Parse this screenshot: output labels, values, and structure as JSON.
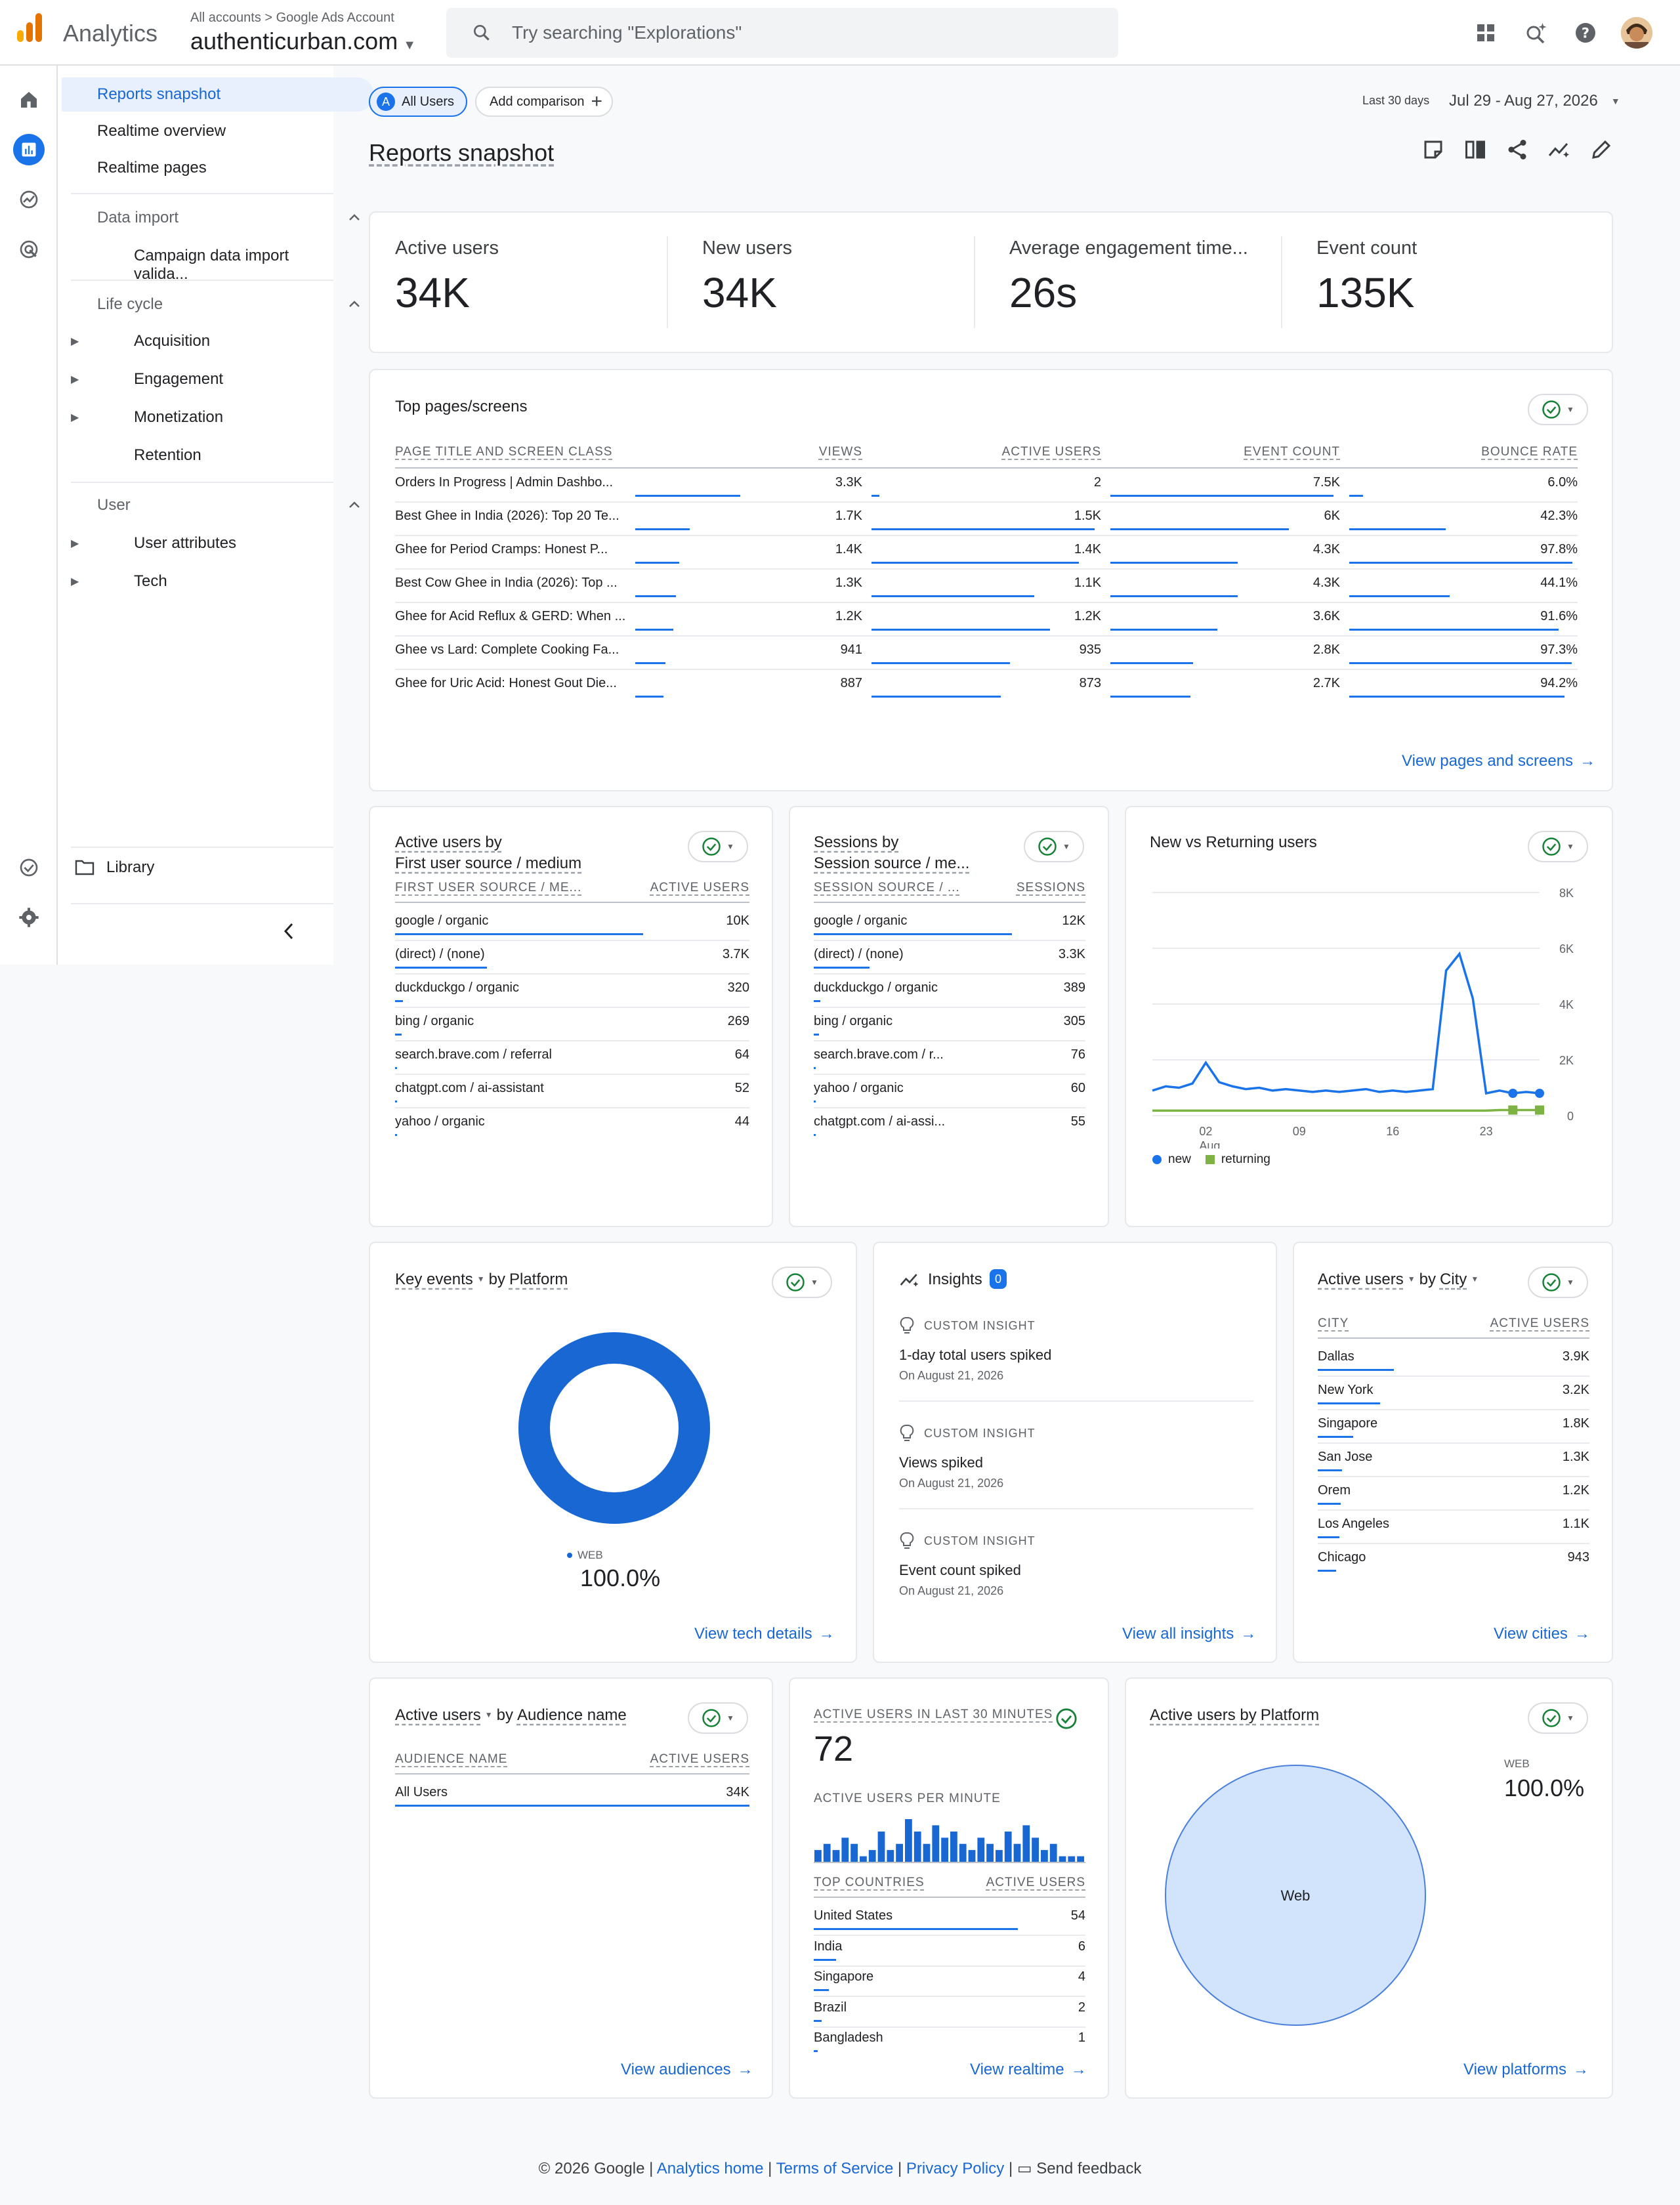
{
  "header": {
    "app_name": "Analytics",
    "breadcrumb": "All accounts > Google Ads Account",
    "account": "authenticurban.com",
    "search_placeholder": "Try searching \"Explorations\""
  },
  "nav": {
    "reports_snapshot": "Reports snapshot",
    "realtime_overview": "Realtime overview",
    "realtime_pages": "Realtime pages",
    "data_import": "Data import",
    "campaign_import": "Campaign data import valida...",
    "life_cycle": "Life cycle",
    "acquisition": "Acquisition",
    "engagement": "Engagement",
    "monetization": "Monetization",
    "retention": "Retention",
    "user": "User",
    "user_attributes": "User attributes",
    "tech": "Tech",
    "library": "Library"
  },
  "toolbar": {
    "segment_badge": "A",
    "segment": "All Users",
    "add_comparison": "Add comparison",
    "date_label": "Last 30 days",
    "date_range": "Jul 29 - Aug 27, 2026",
    "page_title": "Reports snapshot"
  },
  "metrics": [
    {
      "label": "Active users",
      "value": "34K"
    },
    {
      "label": "New users",
      "value": "34K"
    },
    {
      "label": "Average engagement time...",
      "value": "26s"
    },
    {
      "label": "Event count",
      "value": "135K"
    }
  ],
  "top_pages": {
    "title": "Top pages/screens",
    "headers": [
      "PAGE TITLE AND SCREEN CLASS",
      "VIEWS",
      "ACTIVE USERS",
      "EVENT COUNT",
      "BOUNCE RATE"
    ],
    "rows": [
      {
        "title": "Orders In Progress | Admin Dashbo...",
        "views": "3.3K",
        "users": "2",
        "events": "7.5K",
        "bounce": "6.0%",
        "vf": 1.0,
        "uf": 0.0,
        "ef": 1.0,
        "bf": 0.06
      },
      {
        "title": "Best Ghee in India (2026): Top 20 Te...",
        "views": "1.7K",
        "users": "1.5K",
        "events": "6K",
        "bounce": "42.3%",
        "vf": 0.52,
        "uf": 1.0,
        "ef": 0.8,
        "bf": 0.423
      },
      {
        "title": "Ghee for Period Cramps: Honest P...",
        "views": "1.4K",
        "users": "1.4K",
        "events": "4.3K",
        "bounce": "97.8%",
        "vf": 0.42,
        "uf": 0.93,
        "ef": 0.57,
        "bf": 0.978
      },
      {
        "title": "Best Cow Ghee in India (2026): Top ...",
        "views": "1.3K",
        "users": "1.1K",
        "events": "4.3K",
        "bounce": "44.1%",
        "vf": 0.39,
        "uf": 0.73,
        "ef": 0.57,
        "bf": 0.441
      },
      {
        "title": "Ghee for Acid Reflux & GERD: When ...",
        "views": "1.2K",
        "users": "1.2K",
        "events": "3.6K",
        "bounce": "91.6%",
        "vf": 0.36,
        "uf": 0.8,
        "ef": 0.48,
        "bf": 0.916
      },
      {
        "title": "Ghee vs Lard: Complete Cooking Fa...",
        "views": "941",
        "users": "935",
        "events": "2.8K",
        "bounce": "97.3%",
        "vf": 0.29,
        "uf": 0.62,
        "ef": 0.37,
        "bf": 0.973
      },
      {
        "title": "Ghee for Uric Acid: Honest Gout Die...",
        "views": "887",
        "users": "873",
        "events": "2.7K",
        "bounce": "94.2%",
        "vf": 0.27,
        "uf": 0.58,
        "ef": 0.36,
        "bf": 0.942
      }
    ],
    "link": "View pages and screens"
  },
  "first_source": {
    "title_1": "Active users by",
    "title_2": "First user source / medium",
    "headers": [
      "FIRST USER SOURCE / ME...",
      "ACTIVE USERS"
    ],
    "rows": [
      {
        "name": "google / organic",
        "value": "10K",
        "f": 1.0
      },
      {
        "name": "(direct) / (none)",
        "value": "3.7K",
        "f": 0.37
      },
      {
        "name": "duckduckgo / organic",
        "value": "320",
        "f": 0.032
      },
      {
        "name": "bing / organic",
        "value": "269",
        "f": 0.027
      },
      {
        "name": "search.brave.com / referral",
        "value": "64",
        "f": 0.006
      },
      {
        "name": "chatgpt.com / ai-assistant",
        "value": "52",
        "f": 0.005
      },
      {
        "name": "yahoo / organic",
        "value": "44",
        "f": 0.004
      }
    ]
  },
  "sessions_source": {
    "title_1": "Sessions by",
    "title_2": "Session source / me...",
    "headers": [
      "SESSION SOURCE / ...",
      "SESSIONS"
    ],
    "rows": [
      {
        "name": "google / organic",
        "value": "12K",
        "f": 1.0
      },
      {
        "name": "(direct) / (none)",
        "value": "3.3K",
        "f": 0.28
      },
      {
        "name": "duckduckgo / organic",
        "value": "389",
        "f": 0.032
      },
      {
        "name": "bing / organic",
        "value": "305",
        "f": 0.025
      },
      {
        "name": "search.brave.com / r...",
        "value": "76",
        "f": 0.006
      },
      {
        "name": "yahoo / organic",
        "value": "60",
        "f": 0.005
      },
      {
        "name": "chatgpt.com / ai-assi...",
        "value": "55",
        "f": 0.005
      }
    ]
  },
  "chart_data": {
    "type": "line",
    "title": "New vs Returning users",
    "ylim": [
      0,
      8000
    ],
    "y_ticks": [
      "8K",
      "6K",
      "4K",
      "2K",
      "0"
    ],
    "x_ticks": [
      {
        "day": 4,
        "label": "02",
        "sub": "Aug"
      },
      {
        "day": 11,
        "label": "09",
        "sub": ""
      },
      {
        "day": 18,
        "label": "16",
        "sub": ""
      },
      {
        "day": 25,
        "label": "23",
        "sub": ""
      }
    ],
    "series": [
      {
        "name": "new",
        "color": "#1a73e8",
        "values": [
          900,
          1050,
          1000,
          1150,
          1900,
          1200,
          1050,
          950,
          1000,
          900,
          950,
          900,
          850,
          900,
          850,
          900,
          950,
          850,
          900,
          850,
          900,
          950,
          5200,
          5800,
          4200,
          800,
          900,
          800,
          850,
          800
        ]
      },
      {
        "name": "returning",
        "color": "#7cb342",
        "values": [
          180,
          180,
          180,
          180,
          180,
          180,
          180,
          180,
          180,
          180,
          180,
          180,
          180,
          180,
          180,
          180,
          180,
          180,
          180,
          180,
          180,
          180,
          180,
          180,
          180,
          180,
          200,
          200,
          200,
          200
        ]
      }
    ]
  },
  "key_events": {
    "title_a": "Key events",
    "title_b": "by",
    "title_c": "Platform",
    "legend": "WEB",
    "percent": "100.0%",
    "link": "View tech details"
  },
  "insights": {
    "title": "Insights",
    "count": "0",
    "items": [
      {
        "label": "CUSTOM INSIGHT",
        "title": "1-day total users spiked",
        "date": "On August 21, 2026"
      },
      {
        "label": "CUSTOM INSIGHT",
        "title": "Views spiked",
        "date": "On August 21, 2026"
      },
      {
        "label": "CUSTOM INSIGHT",
        "title": "Event count spiked",
        "date": "On August 21, 2026"
      }
    ],
    "link": "View all insights"
  },
  "cities": {
    "title_a": "Active users",
    "title_b": "by",
    "title_c": "City",
    "headers": [
      "CITY",
      "ACTIVE USERS"
    ],
    "rows": [
      {
        "name": "Dallas",
        "value": "3.9K",
        "f": 0.28
      },
      {
        "name": "New York",
        "value": "3.2K",
        "f": 0.23
      },
      {
        "name": "Singapore",
        "value": "1.8K",
        "f": 0.13
      },
      {
        "name": "San Jose",
        "value": "1.3K",
        "f": 0.09
      },
      {
        "name": "Orem",
        "value": "1.2K",
        "f": 0.085
      },
      {
        "name": "Los Angeles",
        "value": "1.1K",
        "f": 0.08
      },
      {
        "name": "Chicago",
        "value": "943",
        "f": 0.067
      }
    ],
    "link": "View cities"
  },
  "audience": {
    "title_a": "Active users",
    "title_b": "by",
    "title_c": "Audience name",
    "headers": [
      "AUDIENCE NAME",
      "ACTIVE USERS"
    ],
    "rows": [
      {
        "name": "All Users",
        "value": "34K",
        "f": 1.0
      }
    ],
    "link": "View audiences"
  },
  "realtime": {
    "header": "ACTIVE USERS IN LAST 30 MINUTES",
    "value": "72",
    "per_minute_label": "ACTIVE USERS PER MINUTE",
    "per_minute": [
      2,
      3,
      2,
      4,
      3,
      1,
      2,
      5,
      2,
      3,
      7,
      5,
      3,
      6,
      4,
      5,
      3,
      2,
      4,
      3,
      2,
      5,
      3,
      6,
      4,
      2,
      3,
      1,
      1,
      1
    ],
    "headers": [
      "TOP COUNTRIES",
      "ACTIVE USERS"
    ],
    "rows": [
      {
        "name": "United States",
        "value": "54",
        "f": 0.75
      },
      {
        "name": "India",
        "value": "6",
        "f": 0.083
      },
      {
        "name": "Singapore",
        "value": "4",
        "f": 0.056
      },
      {
        "name": "Brazil",
        "value": "2",
        "f": 0.028
      },
      {
        "name": "Bangladesh",
        "value": "1",
        "f": 0.014
      }
    ],
    "link": "View realtime"
  },
  "platform": {
    "title_a": "Active users by",
    "title_c": "Platform",
    "legend": "WEB",
    "percent": "100.0%",
    "slice_label": "Web",
    "link": "View platforms"
  },
  "footer": {
    "copyright": "© 2026 Google |",
    "home": "Analytics home",
    "tos": "Terms of Service",
    "privacy": "Privacy Policy",
    "sep": "|",
    "feedback": "Send feedback"
  }
}
